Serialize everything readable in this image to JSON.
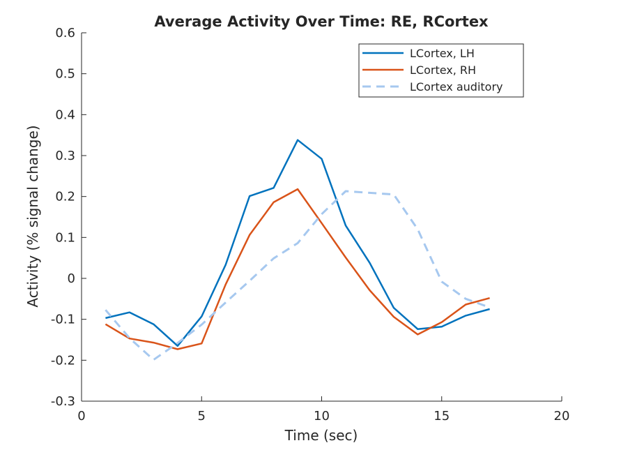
{
  "chart_data": {
    "type": "line",
    "title": "Average Activity Over Time: RE, RCortex",
    "xlabel": "Time (sec)",
    "ylabel": "Activity (% signal change)",
    "xlim": [
      0,
      20
    ],
    "ylim": [
      -0.3,
      0.6
    ],
    "xticks": [
      0,
      5,
      10,
      15,
      20
    ],
    "xtick_labels": [
      "0",
      "5",
      "10",
      "15",
      "20"
    ],
    "yticks": [
      -0.3,
      -0.2,
      -0.1,
      0,
      0.1,
      0.2,
      0.3,
      0.4,
      0.5,
      0.6
    ],
    "ytick_labels": [
      "-0.3",
      "-0.2",
      "-0.1",
      "0",
      "0.1",
      "0.2",
      "0.3",
      "0.4",
      "0.5",
      "0.6"
    ],
    "grid": false,
    "legend_position": "top-right",
    "x": [
      1,
      2,
      3,
      4,
      5,
      6,
      7,
      8,
      9,
      10,
      11,
      12,
      13,
      14,
      15,
      16,
      17
    ],
    "series": [
      {
        "name": "LCortex, LH",
        "color": "#0072BD",
        "style": "solid",
        "values": [
          -0.097,
          -0.083,
          -0.112,
          -0.165,
          -0.093,
          0.033,
          0.201,
          0.221,
          0.338,
          0.292,
          0.129,
          0.038,
          -0.072,
          -0.124,
          -0.118,
          -0.091,
          -0.075
        ]
      },
      {
        "name": "LCortex, RH",
        "color": "#D95319",
        "style": "solid",
        "values": [
          -0.112,
          -0.147,
          -0.157,
          -0.173,
          -0.159,
          -0.015,
          0.106,
          0.186,
          0.218,
          0.135,
          0.051,
          -0.029,
          -0.094,
          -0.137,
          -0.107,
          -0.064,
          -0.048
        ]
      },
      {
        "name": "LCortex auditory",
        "color": "#A6C8EF",
        "style": "dashed",
        "values": [
          -0.077,
          -0.146,
          -0.199,
          -0.158,
          -0.113,
          -0.059,
          -0.006,
          0.049,
          0.086,
          0.157,
          0.213,
          0.209,
          0.205,
          0.12,
          -0.008,
          -0.05,
          -0.071
        ]
      }
    ]
  }
}
